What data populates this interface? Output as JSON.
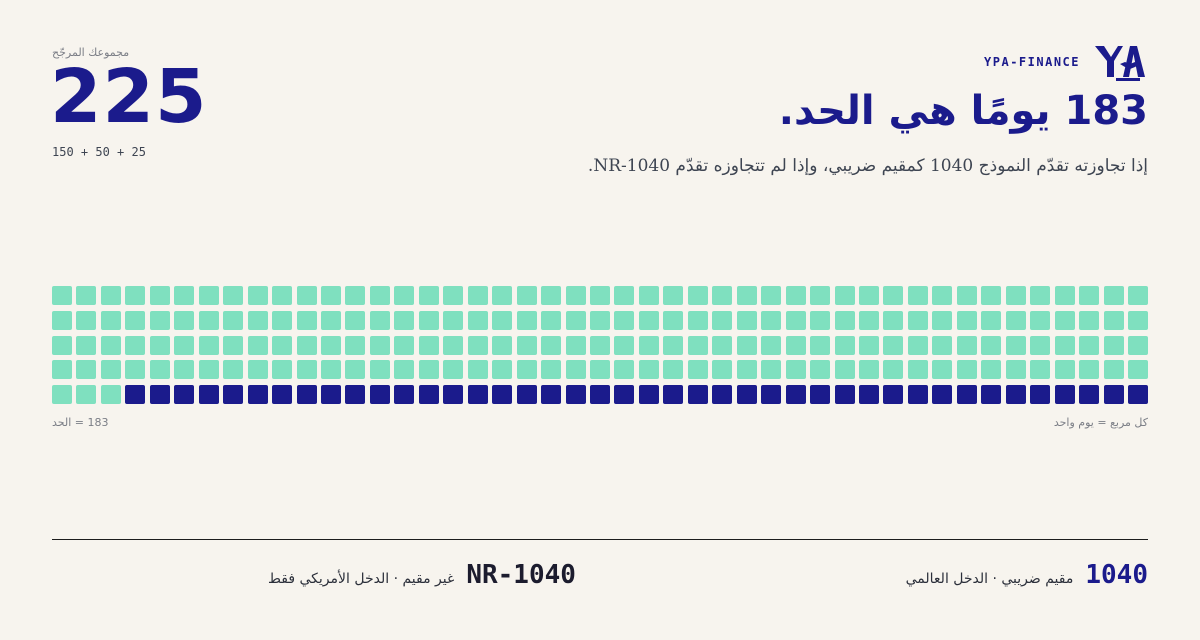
{
  "brand": {
    "name": "YPA-FINANCE",
    "logo_text": "YPA",
    "logo_subtext": "FINANCE",
    "logo_icon": "eagle-emblem-icon"
  },
  "headline": "183 يومًا هي الحد.",
  "subline": "إذا تجاوزته تقدّم النموذج 1040 كمقيم ضريبي، وإذا لم تتجاوزه تقدّم NR-1040.",
  "total": {
    "label": "مجموعك المرجّح",
    "value": "225",
    "formula": "150 + 50 + 25"
  },
  "captions": {
    "cell_unit": "كل مربع = يوم واحد",
    "threshold": "183 = الحد"
  },
  "legend": [
    {
      "code": "1040",
      "desc": "مقيم ضريبي · الدخل العالمي"
    },
    {
      "code": "1040-NR",
      "desc": "غير مقيم · الدخل الأمريكي فقط"
    }
  ],
  "colors": {
    "accent": "#1b1b8c",
    "mint": "#7fe0bf",
    "background": "#f7f4ee"
  },
  "chart_data": {
    "type": "waffle",
    "total_days": 225,
    "threshold_days": 183,
    "days_below_threshold": 183,
    "days_above_threshold": 42,
    "rows": 5,
    "columns": 45
  }
}
